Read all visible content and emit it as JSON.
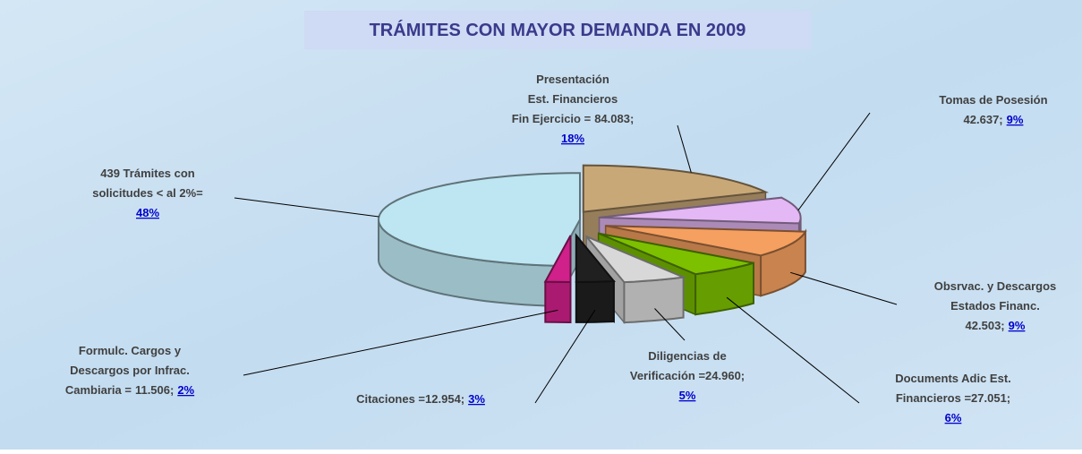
{
  "chart_data": {
    "type": "pie3d",
    "title": "TRÁMITES CON MAYOR DEMANDA EN 2009",
    "categories": [
      [
        "Presentación",
        "Est. Financieros",
        "Fin Ejercicio ="
      ],
      [
        "Tomas de Posesión"
      ],
      [
        "Obsrvac. y Descargos",
        "Estados Financ."
      ],
      [
        "Documents Adic Est.",
        "Financieros ="
      ],
      [
        "Diligencias de",
        "Verificación ="
      ],
      [
        "Citaciones ="
      ],
      [
        "Formulc. Cargos y",
        "Descargos por Infrac.",
        "Cambiaria ="
      ],
      [
        "439 Trámites con",
        "solicitudes < al 2%="
      ]
    ],
    "counts": [
      84083,
      42637,
      42503,
      27051,
      24960,
      12954,
      11506,
      null
    ],
    "count_labels": [
      "84.083;",
      "42.637;",
      "42.503;",
      "27.051;",
      "24.960;",
      "12.954;",
      "11.506;",
      null
    ],
    "values": [
      18,
      9,
      9,
      6,
      5,
      3,
      2,
      48
    ],
    "value_labels": [
      "18%",
      "9%",
      "9%",
      "6%",
      "5%",
      "3%",
      "2%",
      "48%"
    ],
    "colors": [
      "#c9a878",
      "#e4b8f4",
      "#f5a060",
      "#7cc000",
      "#d8d8d8",
      "#202020",
      "#d0208a",
      "#bde6f2"
    ]
  }
}
